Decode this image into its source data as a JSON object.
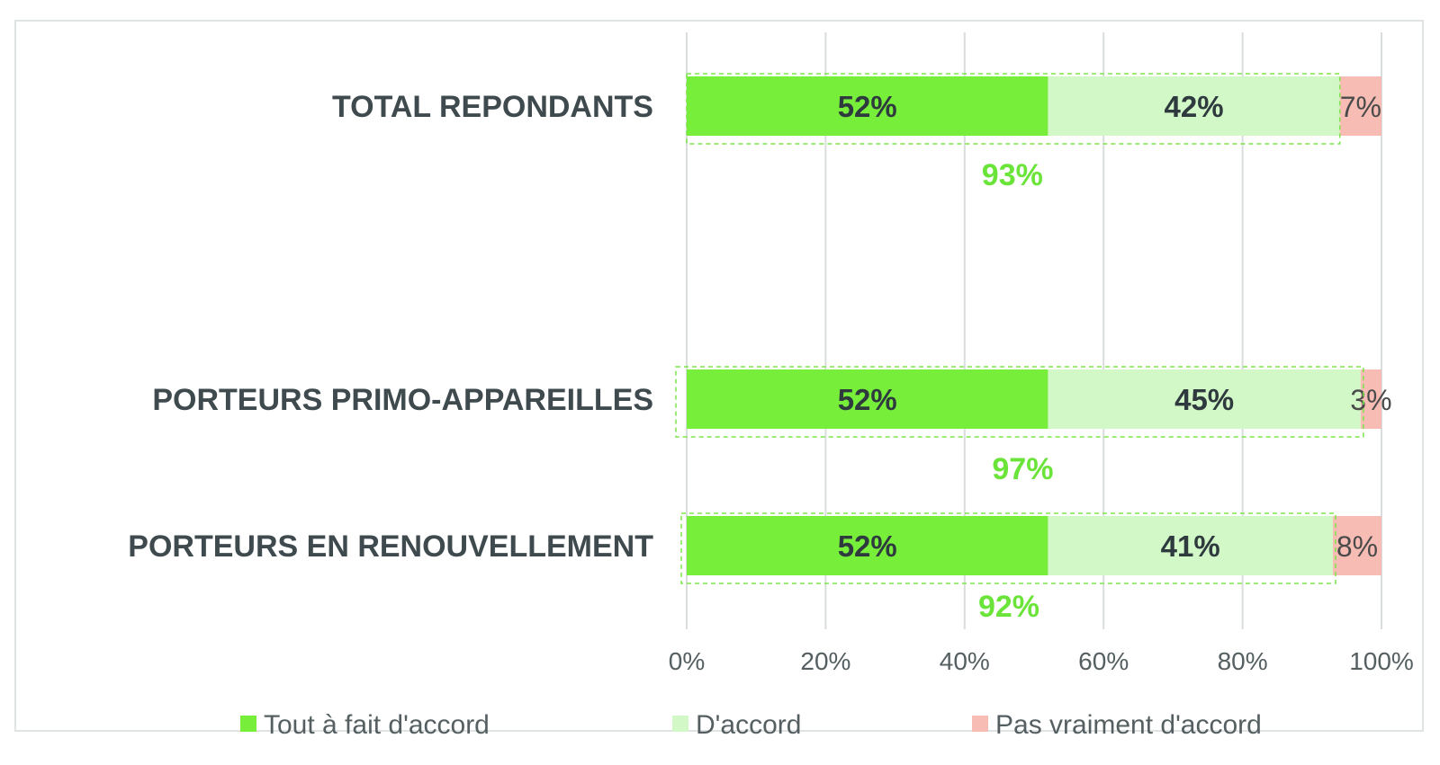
{
  "chart_data": {
    "type": "bar",
    "orientation": "horizontal",
    "stacked": true,
    "categories": [
      "TOTAL REPONDANTS",
      "PORTEURS PRIMO-APPAREILLES",
      "PORTEURS EN RENOUVELLEMENT"
    ],
    "series": [
      {
        "name": "Tout à fait d'accord",
        "values": [
          52,
          52,
          52
        ],
        "labels": [
          "52%",
          "52%",
          "52%"
        ],
        "color": "#76ee3a"
      },
      {
        "name": "D'accord",
        "values": [
          42,
          45,
          41
        ],
        "labels": [
          "42%",
          "45%",
          "41%"
        ],
        "color": "#d3f8c8"
      },
      {
        "name": "Pas vraiment d'accord",
        "values": [
          7,
          3,
          8
        ],
        "labels": [
          "7%",
          "3%",
          "8%"
        ],
        "color": "#f7bdb5"
      }
    ],
    "totals": {
      "labels": [
        "93%",
        "97%",
        "92%"
      ],
      "color": "#6be43a"
    },
    "x_ticks": [
      "0%",
      "20%",
      "40%",
      "60%",
      "80%",
      "100%"
    ],
    "xlim": [
      0,
      100
    ],
    "grid": true,
    "legend_position": "bottom"
  }
}
